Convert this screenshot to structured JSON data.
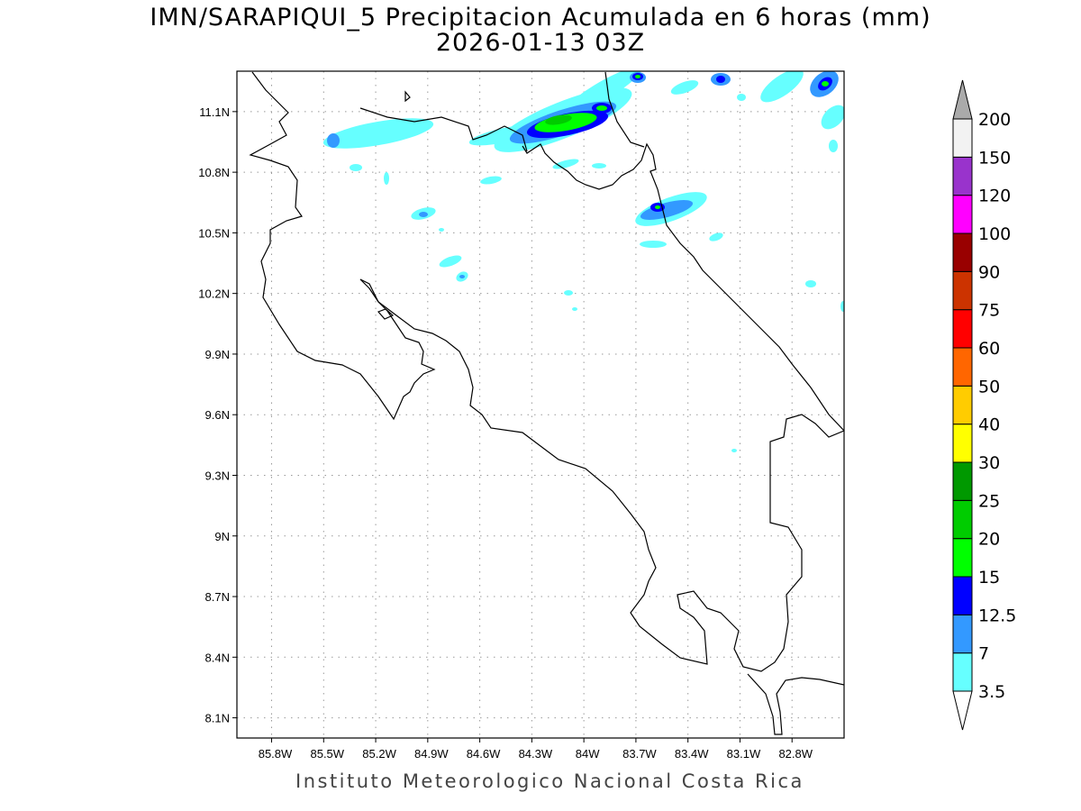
{
  "title": "IMN/SARAPIQUI_5 Precipitacion Acumulada en 6 horas (mm)",
  "subtitle": "2026-01-13 03Z",
  "footer": "Instituto Meteorologico Nacional Costa Rica",
  "chart_data": {
    "type": "heatmap",
    "title": "IMN/SARAPIQUI_5 Precipitacion Acumulada en 6 horas (mm)",
    "subtitle": "2026-01-13 03Z",
    "xlabel": "",
    "ylabel": "",
    "xlim": [
      -86.0,
      -82.5
    ],
    "ylim": [
      8.0,
      11.3
    ],
    "grid": true,
    "x_ticks": [
      -85.8,
      -85.5,
      -85.2,
      -84.9,
      -84.6,
      -84.3,
      -84.0,
      -83.7,
      -83.4,
      -83.1,
      -82.8
    ],
    "x_tick_labels": [
      "85.8W",
      "85.5W",
      "85.2W",
      "84.9W",
      "84.6W",
      "84.3W",
      "84W",
      "83.7W",
      "83.4W",
      "83.1W",
      "82.8W"
    ],
    "y_ticks": [
      11.1,
      10.8,
      10.5,
      10.2,
      9.9,
      9.6,
      9.3,
      9.0,
      8.7,
      8.4,
      8.1
    ],
    "y_tick_labels": [
      "11.1N",
      "10.8N",
      "10.5N",
      "10.2N",
      "9.9N",
      "9.6N",
      "9.3N",
      "9N",
      "8.7N",
      "8.4N",
      "8.1N"
    ],
    "colorbar": {
      "placement": "right",
      "levels": [
        "3.5",
        "7",
        "12.5",
        "15",
        "20",
        "25",
        "30",
        "40",
        "50",
        "60",
        "75",
        "90",
        "100",
        "120",
        "150",
        "200"
      ],
      "colors": [
        "#66ffff",
        "#3399ff",
        "#0000ff",
        "#00ff00",
        "#00cc00",
        "#009900",
        "#ffff00",
        "#ffcc00",
        "#ff6600",
        "#ff0000",
        "#cc3300",
        "#990000",
        "#ff00ff",
        "#9933cc",
        "#f2f2f2"
      ],
      "below_color": "#ffffff",
      "above_color": "#aaaaaa"
    },
    "max_region": "north Costa Rica near 84.1W 11.05N, 20-25 mm"
  }
}
